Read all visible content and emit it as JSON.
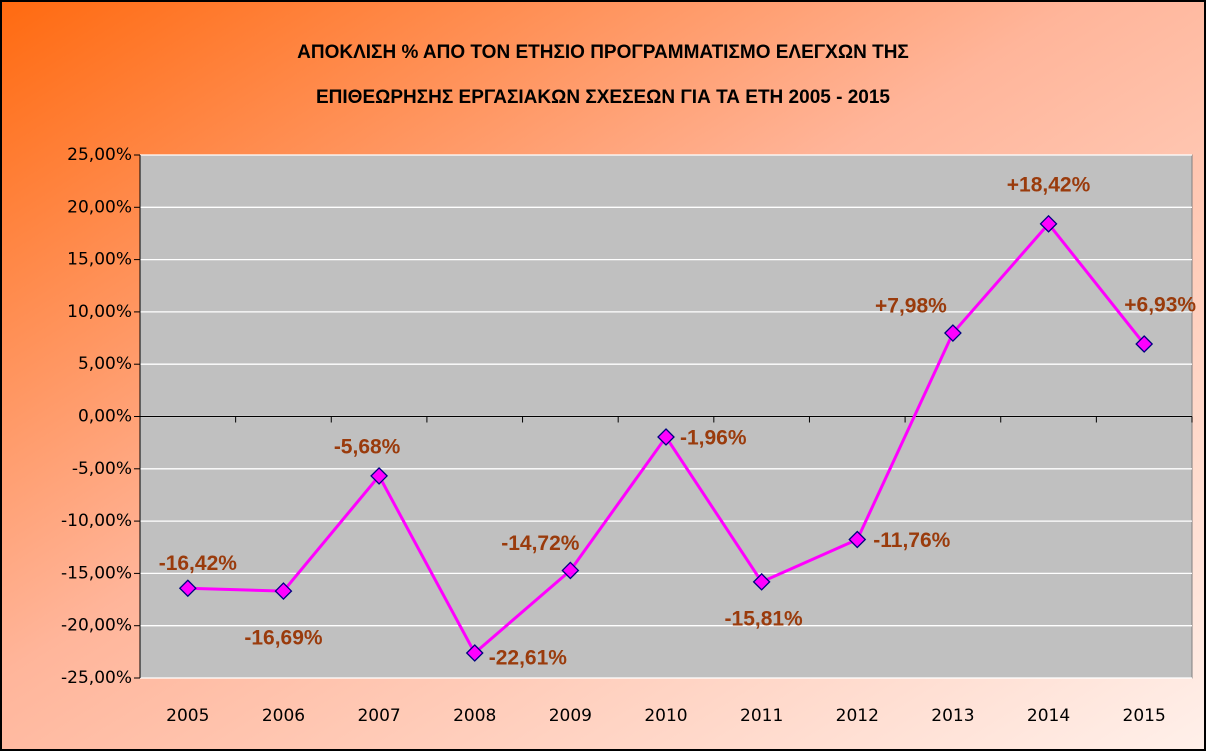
{
  "chart_data": {
    "type": "line",
    "title": [
      "ΑΠΟΚΛΙΣΗ % ΑΠΟ ΤΟΝ ΕΤΗΣΙΟ ΠΡΟΓΡΑΜΜΑΤΙΣΜΟ ΕΛΕΓΧΩΝ ΤΗΣ",
      "ΕΠΙΘΕΩΡΗΣΗΣ ΕΡΓΑΣΙΑΚΩΝ ΣΧΕΣΕΩΝ ΓΙΑ ΤΑ ΕΤΗ 2005 - 2015"
    ],
    "categories": [
      "2005",
      "2006",
      "2007",
      "2008",
      "2009",
      "2010",
      "2011",
      "2012",
      "2013",
      "2014",
      "2015"
    ],
    "values": [
      -16.42,
      -16.69,
      -5.68,
      -22.61,
      -14.72,
      -1.96,
      -15.81,
      -11.76,
      7.98,
      18.42,
      6.93
    ],
    "value_labels": [
      "-16,42%",
      "-16,69%",
      "-5,68%",
      "-22,61%",
      "-14,72%",
      "-1,96%",
      "-15,81%",
      "-11,76%",
      "+7,98%",
      "+18,42%",
      "+6,93%"
    ],
    "color": "#ff00ff",
    "ylim": [
      -25,
      25
    ],
    "yticks": [
      {
        "value": -25,
        "label": "-25,00%"
      },
      {
        "value": -20,
        "label": "-20,00%"
      },
      {
        "value": -15,
        "label": "-15,00%"
      },
      {
        "value": -10,
        "label": "-10,00%"
      },
      {
        "value": -5,
        "label": "-5,00%"
      },
      {
        "value": 0,
        "label": "0,00%"
      },
      {
        "value": 5,
        "label": "5,00%"
      },
      {
        "value": 10,
        "label": "10,00%"
      },
      {
        "value": 15,
        "label": "15,00%"
      },
      {
        "value": 20,
        "label": "20,00%"
      },
      {
        "value": 25,
        "label": "25,00%"
      }
    ],
    "grid": true
  }
}
